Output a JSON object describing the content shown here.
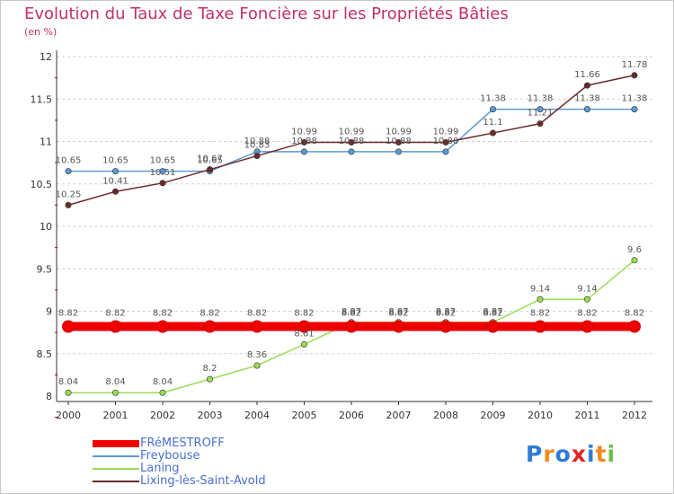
{
  "title": "Evolution du Taux de Taxe Foncière sur les Propriétés Bâties",
  "unit": "(en %)",
  "chart_data": {
    "type": "line",
    "title": "Evolution du Taux de Taxe Foncière sur les Propriétés Bâties",
    "ylabel": "(en %)",
    "xlabel": "",
    "ylim": [
      8,
      12
    ],
    "yticks": [
      "8",
      "8.5",
      "9",
      "9.5",
      "10",
      "10.5",
      "11",
      "11.5",
      "12"
    ],
    "categories": [
      "2000",
      "2001",
      "2002",
      "2003",
      "2004",
      "2005",
      "2006",
      "2007",
      "2008",
      "2009",
      "2010",
      "2011",
      "2012"
    ],
    "grid": "horizontal dashed",
    "legend": "bottom-left",
    "series": [
      {
        "name": "FRéMESTROFF",
        "color": "#ee0000",
        "values": [
          8.82,
          8.82,
          8.82,
          8.82,
          8.82,
          8.82,
          8.82,
          8.82,
          8.82,
          8.82,
          8.82,
          8.82,
          8.82
        ],
        "labels": [
          "8.82",
          "8.82",
          "8.82",
          "8.82",
          "8.82",
          "8.82",
          "8.82",
          "8.82",
          "8.82",
          "8.82",
          "8.82",
          "8.82",
          "8.82"
        ]
      },
      {
        "name": "Freybouse",
        "color": "#5b9bd5",
        "values": [
          10.65,
          10.65,
          10.65,
          10.65,
          10.88,
          10.88,
          10.88,
          10.88,
          10.88,
          11.38,
          11.38,
          11.38,
          11.38
        ],
        "labels": [
          "10.65",
          "10.65",
          "10.65",
          "10.65",
          "10.88",
          "10.88",
          "10.88",
          "10.88",
          "10.88",
          "11.38",
          "11.38",
          "11.38",
          "11.38"
        ]
      },
      {
        "name": "Laning",
        "color": "#99dd55",
        "values": [
          8.04,
          8.04,
          8.04,
          8.2,
          8.36,
          8.61,
          8.87,
          8.87,
          8.87,
          8.87,
          9.14,
          9.14,
          9.6
        ],
        "labels": [
          "8.04",
          "8.04",
          "8.04",
          "8.2",
          "8.36",
          "8.61",
          "8.87",
          "8.87",
          "8.87",
          "8.87",
          "9.14",
          "9.14",
          "9.6"
        ]
      },
      {
        "name": "Lixing-lès-Saint-Avold",
        "color": "#6b2a2a",
        "values": [
          10.25,
          10.41,
          10.51,
          10.67,
          10.83,
          10.99,
          10.99,
          10.99,
          10.99,
          11.1,
          11.21,
          11.66,
          11.78
        ],
        "labels": [
          "10.25",
          "10.41",
          "10.51",
          "10.67",
          "10.83",
          "10.99",
          "10.99",
          "10.99",
          "10.99",
          "11.1",
          "11.21",
          "11.66",
          "11.78"
        ]
      }
    ]
  },
  "logo": {
    "text": "Proxiti",
    "colors": [
      "#2e7bd6",
      "#f08a1c",
      "#2e7bd6",
      "#e02424",
      "#2e7bd6",
      "#f08a1c",
      "#6cc04a"
    ]
  }
}
